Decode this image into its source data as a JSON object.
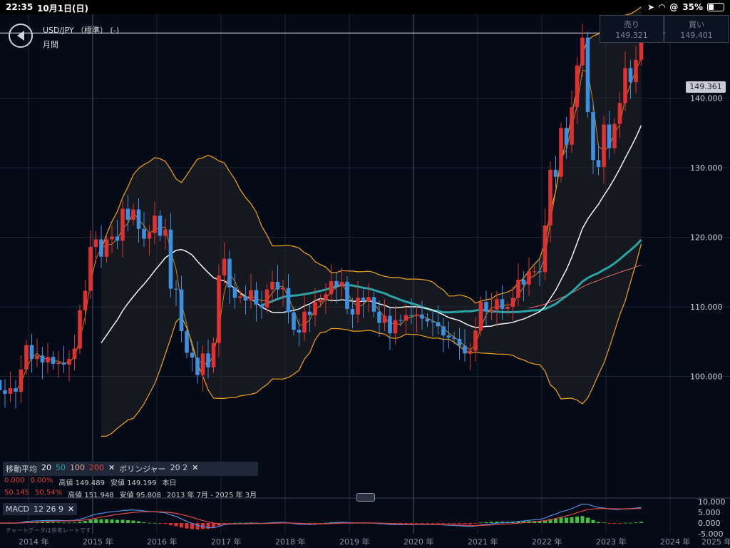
{
  "status_bar": {
    "time": "22:35",
    "date": "10月1日(日)",
    "battery": "35%"
  },
  "header": {
    "pair": "USD/JPY （標準） (-)",
    "period": "月間"
  },
  "quotes": {
    "sell_label": "売り",
    "sell_value": "149.321",
    "buy_label": "買い",
    "buy_value": "149.401"
  },
  "price_tag": "149.361",
  "y_labels": [
    "140.000",
    "130.000",
    "120.000",
    "110.000",
    "100.000"
  ],
  "macd_labels": [
    "10.000",
    "5.000",
    "0.000",
    "-5.000"
  ],
  "x_labels": [
    "2014 年",
    "2015 年",
    "2016 年",
    "2017 年",
    "2018 年",
    "2019 年",
    "2020 年",
    "2021 年",
    "2022 年",
    "2023 年",
    "2024 年",
    "2025 年"
  ],
  "legend": {
    "ma_label": "移動平均",
    "ma_periods": [
      "20",
      "50",
      "100",
      "200"
    ],
    "bb_label": "ボリンジャー",
    "bb_params": "20 2",
    "row2": {
      "v1": "0.000",
      "v2": "0.00%",
      "high": "高値 149.489",
      "low": "安値 149.199",
      "scope": "本日"
    },
    "row3": {
      "v1": "50.145",
      "v2": "50.54%",
      "high": "高値 151.948",
      "low": "安値 95.808",
      "range": "2013 年 7月 - 2025 年 3月"
    }
  },
  "macd": {
    "label": "MACD",
    "params": "12 26 9"
  },
  "footer_note": "チャートデータは参考レートです",
  "colors": {
    "up": "#e0302f",
    "down": "#3d8fe0",
    "bollinger": "#f2a31b",
    "ma20": "#f2f2f2",
    "ma50": "#2aa3a6",
    "ma100": "#e06a6a",
    "macd": "#4c8ce0",
    "signal": "#e04848",
    "hist_pos": "#3ec23e",
    "hist_neg": "#e23030"
  },
  "chart_data": {
    "type": "candlestick",
    "ylim": [
      93,
      155
    ],
    "x_start": 2013.55,
    "months": [
      {
        "o": 99.5,
        "c": 98.0
      },
      {
        "o": 98.0,
        "c": 97.5
      },
      {
        "o": 97.5,
        "c": 98.3
      },
      {
        "o": 98.3,
        "c": 97.8
      },
      {
        "o": 97.8,
        "c": 101.0
      },
      {
        "o": 101.0,
        "c": 104.5
      },
      {
        "o": 104.5,
        "c": 102.5
      },
      {
        "o": 102.5,
        "c": 103.0
      },
      {
        "o": 103.0,
        "c": 102.0
      },
      {
        "o": 102.0,
        "c": 102.8
      },
      {
        "o": 102.8,
        "c": 101.8
      },
      {
        "o": 101.8,
        "c": 102.0
      },
      {
        "o": 102.0,
        "c": 101.7
      },
      {
        "o": 101.7,
        "c": 102.5
      },
      {
        "o": 102.5,
        "c": 104.0
      },
      {
        "o": 104.0,
        "c": 109.5
      },
      {
        "o": 109.5,
        "c": 112.3
      },
      {
        "o": 112.3,
        "c": 118.6
      },
      {
        "o": 118.6,
        "c": 119.7
      },
      {
        "o": 119.7,
        "c": 117.2
      },
      {
        "o": 117.2,
        "c": 119.7
      },
      {
        "o": 119.7,
        "c": 120.1
      },
      {
        "o": 120.1,
        "c": 119.5
      },
      {
        "o": 119.5,
        "c": 124.1
      },
      {
        "o": 124.1,
        "c": 122.5
      },
      {
        "o": 122.5,
        "c": 124.0
      },
      {
        "o": 124.0,
        "c": 121.2
      },
      {
        "o": 121.2,
        "c": 119.8
      },
      {
        "o": 119.8,
        "c": 120.6
      },
      {
        "o": 120.6,
        "c": 123.1
      },
      {
        "o": 123.1,
        "c": 120.2
      },
      {
        "o": 120.2,
        "c": 121.1
      },
      {
        "o": 121.1,
        "c": 112.6
      },
      {
        "o": 112.6,
        "c": 112.5
      },
      {
        "o": 112.5,
        "c": 106.5
      },
      {
        "o": 106.5,
        "c": 103.4
      },
      {
        "o": 103.4,
        "c": 102.7
      },
      {
        "o": 102.7,
        "c": 100.2
      },
      {
        "o": 100.2,
        "c": 103.3
      },
      {
        "o": 103.3,
        "c": 101.3
      },
      {
        "o": 101.3,
        "c": 104.8
      },
      {
        "o": 104.8,
        "c": 114.5
      },
      {
        "o": 114.5,
        "c": 116.9
      },
      {
        "o": 116.9,
        "c": 112.8
      },
      {
        "o": 112.8,
        "c": 111.3
      },
      {
        "o": 111.3,
        "c": 111.5
      },
      {
        "o": 111.5,
        "c": 110.9
      },
      {
        "o": 110.9,
        "c": 112.4
      },
      {
        "o": 112.4,
        "c": 110.3
      },
      {
        "o": 110.3,
        "c": 109.9
      },
      {
        "o": 109.9,
        "c": 112.5
      },
      {
        "o": 112.5,
        "c": 113.6
      },
      {
        "o": 113.6,
        "c": 112.5
      },
      {
        "o": 112.5,
        "c": 112.7
      },
      {
        "o": 112.7,
        "c": 109.2
      },
      {
        "o": 109.2,
        "c": 106.7
      },
      {
        "o": 106.7,
        "c": 106.3
      },
      {
        "o": 106.3,
        "c": 109.3
      },
      {
        "o": 109.3,
        "c": 108.8
      },
      {
        "o": 108.8,
        "c": 110.7
      },
      {
        "o": 110.7,
        "c": 111.0
      },
      {
        "o": 111.0,
        "c": 111.8
      },
      {
        "o": 111.8,
        "c": 113.7
      },
      {
        "o": 113.7,
        "c": 112.9
      },
      {
        "o": 112.9,
        "c": 113.6
      },
      {
        "o": 113.6,
        "c": 109.7
      },
      {
        "o": 109.7,
        "c": 108.9
      },
      {
        "o": 108.9,
        "c": 111.3
      },
      {
        "o": 111.3,
        "c": 110.8
      },
      {
        "o": 110.8,
        "c": 111.4
      },
      {
        "o": 111.4,
        "c": 109.3
      },
      {
        "o": 109.3,
        "c": 107.7
      },
      {
        "o": 107.7,
        "c": 108.7
      },
      {
        "o": 108.7,
        "c": 106.2
      },
      {
        "o": 106.2,
        "c": 108.1
      },
      {
        "o": 108.1,
        "c": 108.0
      },
      {
        "o": 108.0,
        "c": 108.8
      },
      {
        "o": 108.8,
        "c": 108.7
      },
      {
        "o": 108.7,
        "c": 108.9
      },
      {
        "o": 108.9,
        "c": 108.3
      },
      {
        "o": 108.3,
        "c": 107.9
      },
      {
        "o": 107.9,
        "c": 107.8
      },
      {
        "o": 107.8,
        "c": 107.2
      },
      {
        "o": 107.2,
        "c": 105.9
      },
      {
        "o": 105.9,
        "c": 105.6
      },
      {
        "o": 105.6,
        "c": 105.4
      },
      {
        "o": 105.4,
        "c": 104.4
      },
      {
        "o": 104.4,
        "c": 103.3
      },
      {
        "o": 103.3,
        "c": 103.7
      },
      {
        "o": 103.7,
        "c": 106.6
      },
      {
        "o": 106.6,
        "c": 110.7
      },
      {
        "o": 110.7,
        "c": 109.3
      },
      {
        "o": 109.3,
        "c": 109.6
      },
      {
        "o": 109.6,
        "c": 111.1
      },
      {
        "o": 111.1,
        "c": 109.7
      },
      {
        "o": 109.7,
        "c": 110.0
      },
      {
        "o": 110.0,
        "c": 111.3
      },
      {
        "o": 111.3,
        "c": 113.9
      },
      {
        "o": 113.9,
        "c": 113.2
      },
      {
        "o": 113.2,
        "c": 115.1
      },
      {
        "o": 115.1,
        "c": 115.1
      },
      {
        "o": 115.1,
        "c": 115.0
      },
      {
        "o": 115.0,
        "c": 121.7
      },
      {
        "o": 121.7,
        "c": 129.7
      },
      {
        "o": 129.7,
        "c": 128.7
      },
      {
        "o": 128.7,
        "c": 135.7
      },
      {
        "o": 135.7,
        "c": 133.3
      },
      {
        "o": 133.3,
        "c": 138.7
      },
      {
        "o": 138.7,
        "c": 144.7
      },
      {
        "o": 144.7,
        "c": 148.7
      },
      {
        "o": 148.7,
        "c": 138.0
      },
      {
        "o": 138.0,
        "c": 131.1
      },
      {
        "o": 131.1,
        "c": 130.1
      },
      {
        "o": 130.1,
        "c": 136.2
      },
      {
        "o": 136.2,
        "c": 132.8
      },
      {
        "o": 132.8,
        "c": 136.3
      },
      {
        "o": 136.3,
        "c": 139.3
      },
      {
        "o": 139.3,
        "c": 144.3
      },
      {
        "o": 144.3,
        "c": 142.3
      },
      {
        "o": 142.3,
        "c": 145.5
      },
      {
        "o": 145.5,
        "c": 149.3
      }
    ]
  }
}
